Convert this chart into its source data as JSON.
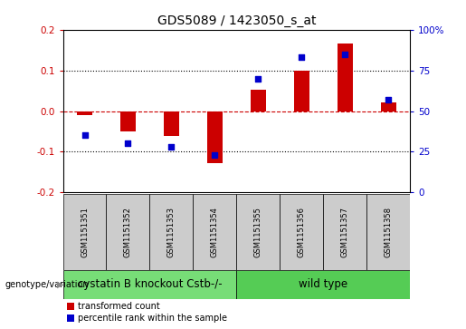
{
  "title": "GDS5089 / 1423050_s_at",
  "samples": [
    "GSM1151351",
    "GSM1151352",
    "GSM1151353",
    "GSM1151354",
    "GSM1151355",
    "GSM1151356",
    "GSM1151357",
    "GSM1151358"
  ],
  "red_values": [
    -0.01,
    -0.05,
    -0.062,
    -0.127,
    0.052,
    0.098,
    0.165,
    0.022
  ],
  "blue_values": [
    35,
    30,
    28,
    23,
    70,
    83,
    85,
    57
  ],
  "red_color": "#cc0000",
  "blue_color": "#0000cc",
  "ylim_left": [
    -0.2,
    0.2
  ],
  "ylim_right": [
    0,
    100
  ],
  "yticks_left": [
    -0.2,
    -0.1,
    0.0,
    0.1,
    0.2
  ],
  "yticks_right": [
    0,
    25,
    50,
    75,
    100
  ],
  "ytick_labels_right": [
    "0",
    "25",
    "50",
    "75",
    "100%"
  ],
  "group1_label": "cystatin B knockout Cstb-/-",
  "group2_label": "wild type",
  "group1_indices": [
    0,
    1,
    2,
    3
  ],
  "group2_indices": [
    4,
    5,
    6,
    7
  ],
  "group1_color": "#77dd77",
  "group2_color": "#55cc55",
  "sample_box_color": "#cccccc",
  "legend_red_label": "transformed count",
  "legend_blue_label": "percentile rank within the sample",
  "genotype_label": "genotype/variation",
  "bar_width": 0.35,
  "blue_marker_size": 5,
  "title_fontsize": 10,
  "tick_fontsize": 7.5,
  "sample_fontsize": 6,
  "group_label_fontsize": 8.5,
  "legend_fontsize": 7,
  "genotype_fontsize": 7
}
